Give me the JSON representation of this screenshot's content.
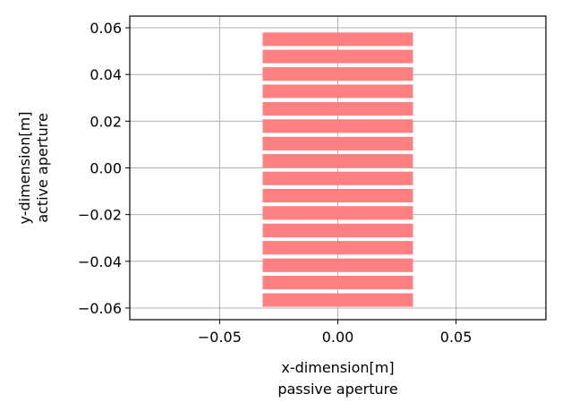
{
  "chart_data": {
    "type": "bar",
    "xlabel_lines": [
      "x-dimension[m]",
      "passive aperture"
    ],
    "ylabel_lines": [
      "y-dimension[m]",
      "active aperture"
    ],
    "xlim": [
      -0.088,
      0.088
    ],
    "ylim": [
      -0.065,
      0.065
    ],
    "xticks": [
      -0.05,
      0.0,
      0.05
    ],
    "xtick_labels": [
      "−0.05",
      "0.00",
      "0.05"
    ],
    "yticks": [
      -0.06,
      -0.04,
      -0.02,
      0.0,
      0.02,
      0.04,
      0.06
    ],
    "ytick_labels": [
      "−0.06",
      "−0.04",
      "−0.02",
      "0.00",
      "0.02",
      "0.04",
      "0.06"
    ],
    "grid": true,
    "colors": {
      "element_fill": "#ff8080",
      "grid": "#b0b0b0",
      "axis": "#000000"
    },
    "elements": [
      {
        "x0": -0.0318,
        "x1": 0.0318,
        "y0": -0.0595,
        "y1": -0.0537
      },
      {
        "x0": -0.0318,
        "x1": 0.0318,
        "y0": -0.052,
        "y1": -0.0462
      },
      {
        "x0": -0.0318,
        "x1": 0.0318,
        "y0": -0.0446,
        "y1": -0.0388
      },
      {
        "x0": -0.0318,
        "x1": 0.0318,
        "y0": -0.0371,
        "y1": -0.0313
      },
      {
        "x0": -0.0318,
        "x1": 0.0318,
        "y0": -0.0297,
        "y1": -0.0239
      },
      {
        "x0": -0.0318,
        "x1": 0.0318,
        "y0": -0.0222,
        "y1": -0.0164
      },
      {
        "x0": -0.0318,
        "x1": 0.0318,
        "y0": -0.0148,
        "y1": -0.009
      },
      {
        "x0": -0.0318,
        "x1": 0.0318,
        "y0": -0.0074,
        "y1": -0.0016
      },
      {
        "x0": -0.0318,
        "x1": 0.0318,
        "y0": 0.0001,
        "y1": 0.0059
      },
      {
        "x0": -0.0318,
        "x1": 0.0318,
        "y0": 0.0075,
        "y1": 0.0133
      },
      {
        "x0": -0.0318,
        "x1": 0.0318,
        "y0": 0.015,
        "y1": 0.0208
      },
      {
        "x0": -0.0318,
        "x1": 0.0318,
        "y0": 0.0224,
        "y1": 0.0282
      },
      {
        "x0": -0.0318,
        "x1": 0.0318,
        "y0": 0.0299,
        "y1": 0.0357
      },
      {
        "x0": -0.0318,
        "x1": 0.0318,
        "y0": 0.0373,
        "y1": 0.0431
      },
      {
        "x0": -0.0318,
        "x1": 0.0318,
        "y0": 0.0448,
        "y1": 0.0506
      },
      {
        "x0": -0.0318,
        "x1": 0.0318,
        "y0": 0.0522,
        "y1": 0.058
      }
    ]
  }
}
